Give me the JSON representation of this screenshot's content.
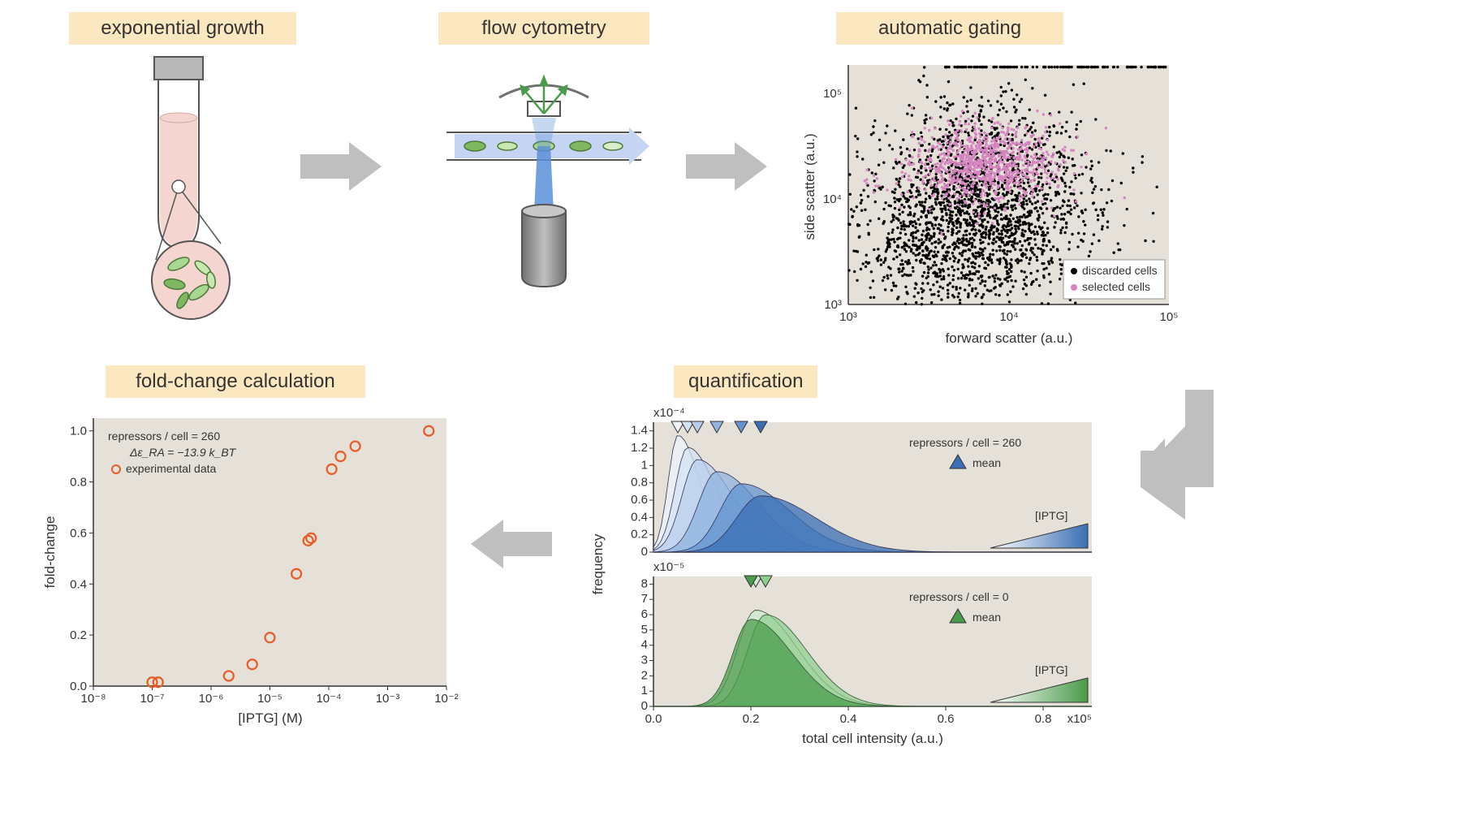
{
  "titles": {
    "t1": "exponential growth",
    "t2": "flow cytometry",
    "t3": "automatic gating",
    "t4": "quantification",
    "t5": "fold-change calculation"
  },
  "colors": {
    "title_bg": "#fce8c0",
    "arrow": "#bfbfbf",
    "plot_bg": "#e5e0d8",
    "axis": "#333333",
    "discarded": "#000000",
    "selected": "#d585c0",
    "fold_point": "#e85d25",
    "hist_blue": "#3a6fb5",
    "hist_blue_light": "#9fbfe0",
    "hist_green": "#4a9b4a",
    "hist_green_light": "#a8d8a8",
    "tube_cap": "#a0a0a0",
    "tube_body": "#ffffff",
    "tube_liquid": "#f4d5d0",
    "cell_body": "#a8d890",
    "cell_outline": "#4a7a3a",
    "flow_blue": "#c5d4f2",
    "laser_blue": "#5b8fd8",
    "laser_body": "#909090",
    "green_arrow": "#4a9b4a"
  },
  "scatter": {
    "xlabel": "forward scatter (a.u.)",
    "ylabel": "side scatter (a.u.)",
    "xlim": [
      1000,
      100000
    ],
    "ylim": [
      1000,
      200000
    ],
    "xticks": [
      "10³",
      "10⁴",
      "10⁵"
    ],
    "yticks": [
      "10³",
      "10⁴",
      "10⁵"
    ],
    "legend": {
      "discarded": "discarded cells",
      "selected": "selected cells"
    }
  },
  "foldchange": {
    "xlabel": "[IPTG] (M)",
    "ylabel": "fold-change",
    "xlim_exp": [
      -8,
      -2
    ],
    "ylim": [
      0,
      1.05
    ],
    "yticks": [
      0.0,
      0.2,
      0.4,
      0.6,
      0.8,
      1.0
    ],
    "xticks": [
      "10⁻⁸",
      "10⁻⁷",
      "10⁻⁶",
      "10⁻⁵",
      "10⁻⁴",
      "10⁻³",
      "10⁻²"
    ],
    "legend_l1": "repressors / cell = 260",
    "legend_l2": "Δε_RA = −13.9 k_BT",
    "legend_l3": "experimental data",
    "points": [
      {
        "x": -7.0,
        "y": 0.015
      },
      {
        "x": -6.9,
        "y": 0.015
      },
      {
        "x": -5.7,
        "y": 0.04
      },
      {
        "x": -5.3,
        "y": 0.085
      },
      {
        "x": -5.0,
        "y": 0.19
      },
      {
        "x": -4.55,
        "y": 0.44
      },
      {
        "x": -4.35,
        "y": 0.57
      },
      {
        "x": -4.3,
        "y": 0.58
      },
      {
        "x": -3.95,
        "y": 0.85
      },
      {
        "x": -3.8,
        "y": 0.9
      },
      {
        "x": -3.55,
        "y": 0.94
      },
      {
        "x": -2.3,
        "y": 1.0
      }
    ]
  },
  "quant": {
    "xlabel": "total cell intensity (a.u.)",
    "ylabel": "frequency",
    "x_exp_label": "x10⁵",
    "xticks": [
      0.0,
      0.2,
      0.4,
      0.6,
      0.8
    ],
    "top": {
      "y_exp_label": "x10⁻⁴",
      "yticks": [
        0,
        0.2,
        0.4,
        0.6,
        0.8,
        1.0,
        1.2,
        1.4
      ],
      "legend_title": "repressors / cell = 260",
      "legend_mean": "mean",
      "iptg_label": "[IPTG]",
      "means": [
        0.05,
        0.07,
        0.09,
        0.13,
        0.18,
        0.22
      ]
    },
    "bot": {
      "y_exp_label": "x10⁻⁵",
      "yticks": [
        0,
        1,
        2,
        3,
        4,
        5,
        6,
        7,
        8
      ],
      "legend_title": "repressors / cell = 0",
      "legend_mean": "mean",
      "iptg_label": "[IPTG]",
      "means": [
        0.21,
        0.23,
        0.2
      ]
    }
  }
}
